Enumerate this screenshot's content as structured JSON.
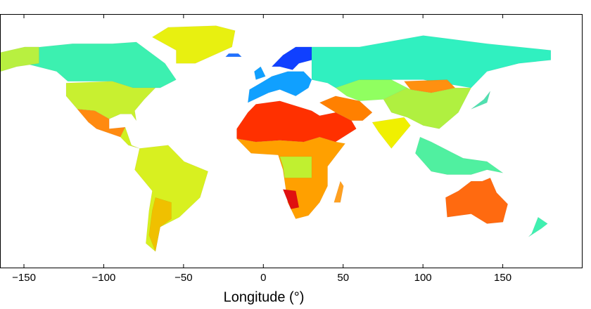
{
  "chart_data": {
    "type": "map",
    "xlabel": "Longitude (°)",
    "xlim": [
      -165,
      200
    ],
    "xticks": [
      {
        "value": -150,
        "label": "−150"
      },
      {
        "value": -100,
        "label": "−100"
      },
      {
        "value": -50,
        "label": "−50"
      },
      0,
      50,
      100,
      150
    ]
  }
}
